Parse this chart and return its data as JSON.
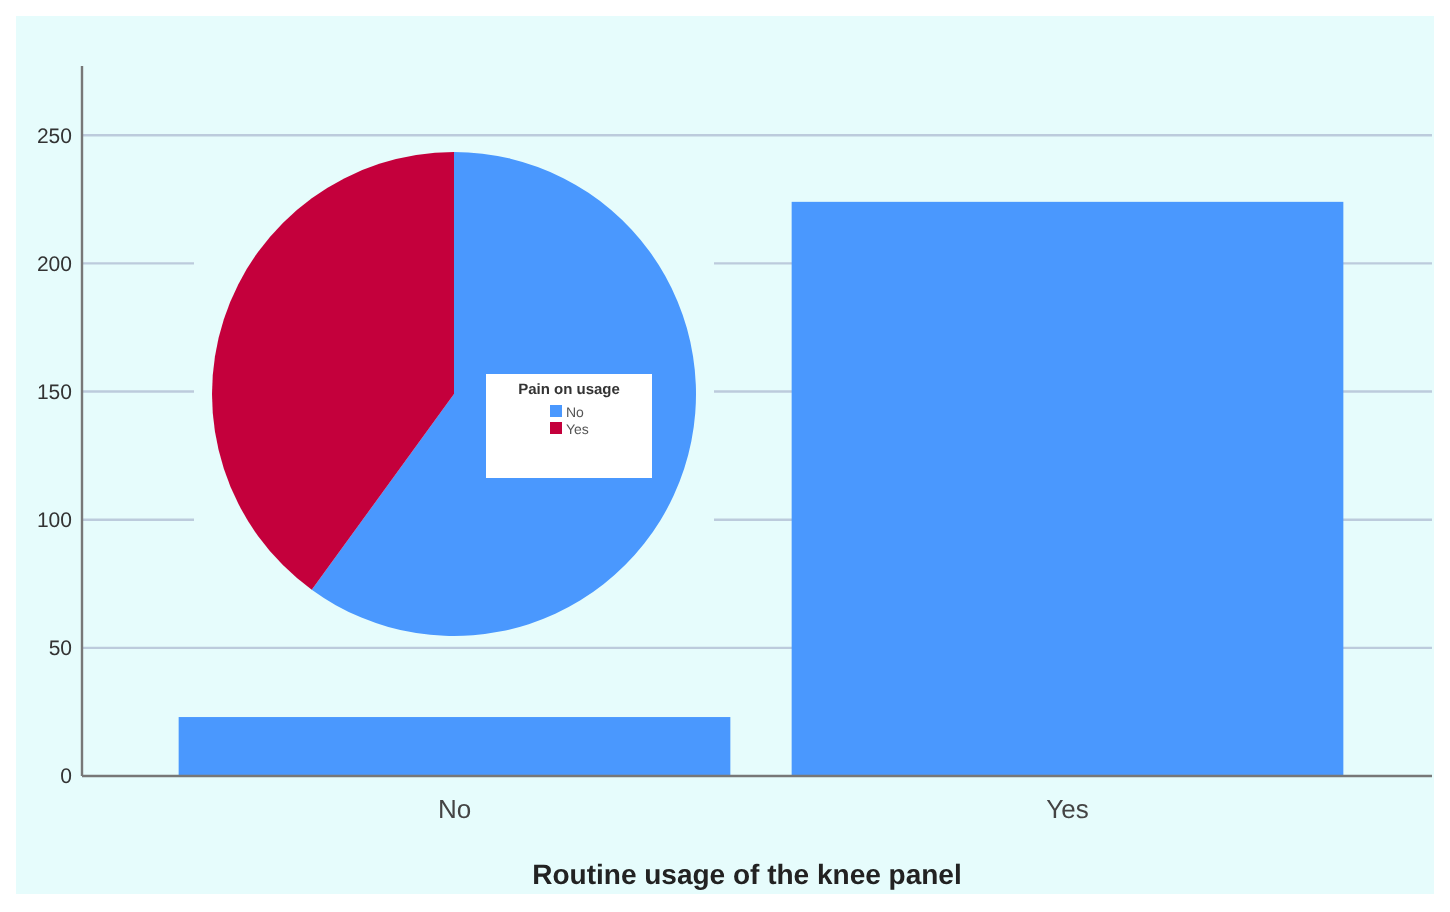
{
  "chart_data": [
    {
      "type": "bar",
      "categories": [
        "No",
        "Yes"
      ],
      "values": [
        23,
        224
      ],
      "color": "#4a98fe",
      "xlabel": "Routine usage of the knee panel",
      "ylim": [
        0,
        277
      ],
      "yticks": [
        0,
        50,
        100,
        150,
        200,
        250
      ],
      "grid": "y"
    },
    {
      "type": "pie",
      "categories": [
        "No",
        "Yes"
      ],
      "values": [
        60,
        40
      ],
      "colors": [
        "#4a98fe",
        "#c4003c"
      ],
      "legend_title": "Pain on usage",
      "legend": "right"
    }
  ]
}
